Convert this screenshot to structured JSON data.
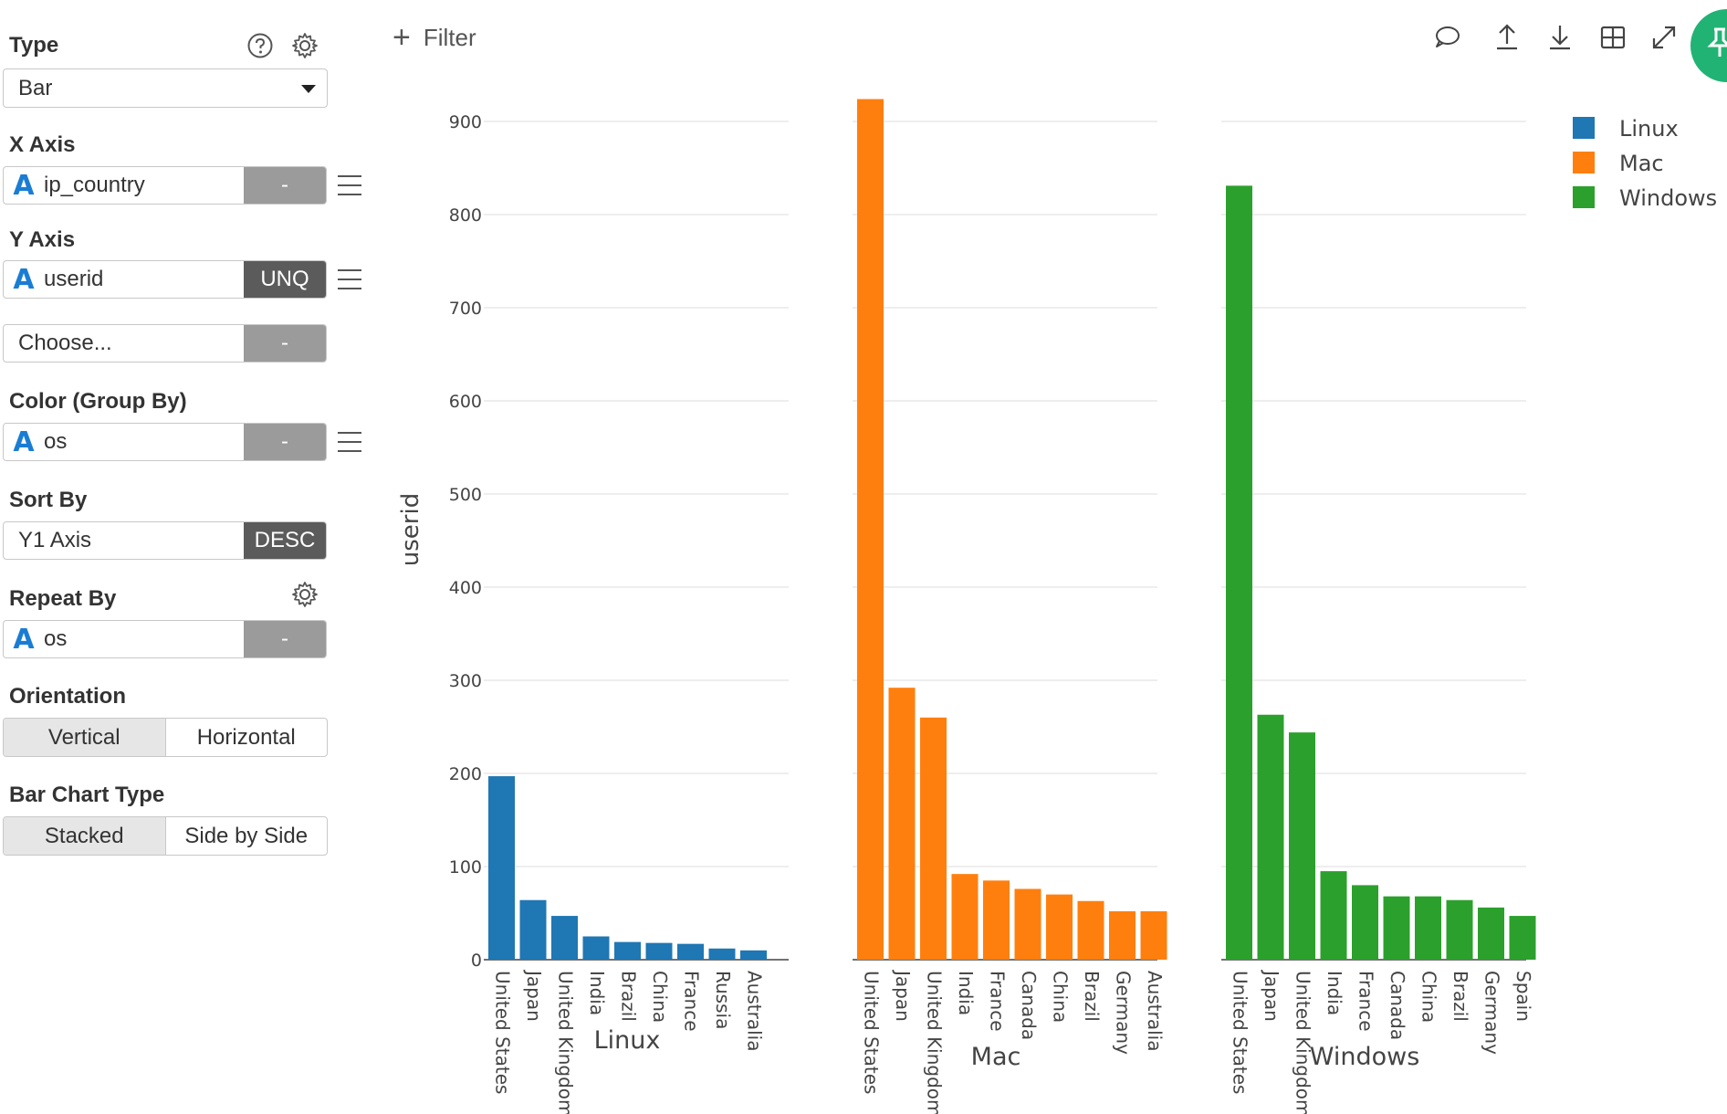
{
  "sidebar": {
    "type": {
      "label": "Type",
      "value": "Bar",
      "help_icon": "question-circle-icon",
      "settings_icon": "gear-icon"
    },
    "x_axis": {
      "label": "X Axis",
      "field": "ip_country",
      "field_type": "A",
      "aggregate": "-"
    },
    "y_axis": {
      "label": "Y Axis",
      "field": "userid",
      "field_type": "A",
      "aggregate": "UNQ",
      "second_placeholder": "Choose...",
      "second_aggregate": "-"
    },
    "color": {
      "label": "Color (Group By)",
      "field": "os",
      "field_type": "A",
      "aggregate": "-"
    },
    "sort_by": {
      "label": "Sort By",
      "field": "Y1 Axis",
      "order": "DESC"
    },
    "repeat_by": {
      "label": "Repeat By",
      "field": "os",
      "field_type": "A",
      "aggregate": "-",
      "settings_icon": "gear-icon"
    },
    "orientation": {
      "label": "Orientation",
      "options": [
        "Vertical",
        "Horizontal"
      ],
      "selected": "Vertical"
    },
    "bar_chart_type": {
      "label": "Bar Chart Type",
      "options": [
        "Stacked",
        "Side by Side"
      ],
      "selected": "Stacked"
    }
  },
  "toolbar": {
    "filter_label": "Filter",
    "icons": [
      "comment-icon",
      "upload-icon",
      "download-icon",
      "grid-icon",
      "expand-icon",
      "pin-icon"
    ]
  },
  "colors": {
    "Linux": "#1f77b4",
    "Mac": "#ff7f0e",
    "Windows": "#2ca02c",
    "pin_button": "#21b374"
  },
  "chart_data": {
    "type": "bar",
    "ylabel": "userid",
    "ylim": [
      0,
      930
    ],
    "yticks": [
      0,
      100,
      200,
      300,
      400,
      500,
      600,
      700,
      800,
      900
    ],
    "grid": true,
    "legend": {
      "placement": "top-right",
      "entries": [
        "Linux",
        "Mac",
        "Windows"
      ]
    },
    "panels": [
      {
        "name": "Linux",
        "categories": [
          "United States",
          "Japan",
          "United Kingdom",
          "India",
          "Brazil",
          "China",
          "France",
          "Russia",
          "Australia"
        ],
        "values": [
          197,
          64,
          47,
          25,
          19,
          18,
          17,
          12,
          10
        ]
      },
      {
        "name": "Mac",
        "categories": [
          "United States",
          "Japan",
          "United Kingdom",
          "India",
          "France",
          "Canada",
          "China",
          "Brazil",
          "Germany",
          "Australia"
        ],
        "values": [
          924,
          292,
          260,
          92,
          85,
          76,
          70,
          63,
          52,
          52
        ]
      },
      {
        "name": "Windows",
        "categories": [
          "United States",
          "Japan",
          "United Kingdom",
          "India",
          "France",
          "Canada",
          "China",
          "Brazil",
          "Germany",
          "Spain"
        ],
        "values": [
          831,
          263,
          244,
          95,
          80,
          68,
          68,
          64,
          56,
          47
        ]
      }
    ]
  }
}
